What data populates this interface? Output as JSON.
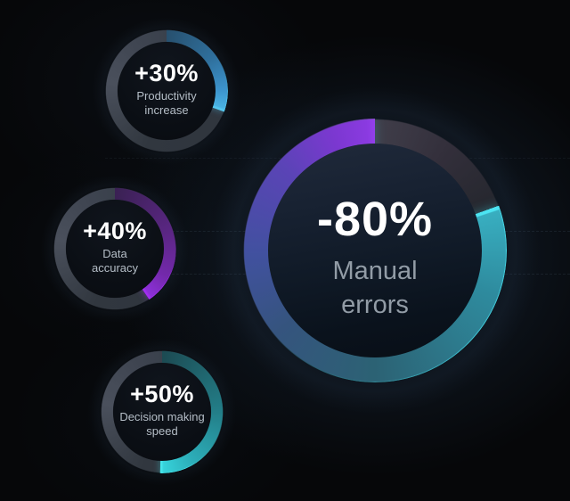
{
  "page": {
    "description": "Dark infographic with four circular progress gauges",
    "background_color": "#060709"
  },
  "chart_data": {
    "type": "donut-gauges",
    "title": "",
    "legend": "none",
    "grid": {
      "style": "faint dashed horizontal lines",
      "color": "rgba(150,180,205,0.10)"
    },
    "gauges": [
      {
        "value_label": "+30%",
        "label_line1": "Productivity",
        "label_line2": "increase",
        "value": 30,
        "percent_filled": 30,
        "direction": "clockwise",
        "start_angle_deg": 0,
        "size": "small",
        "arc_color_start": "#27506e",
        "arc_color_end": "#49b1e2",
        "edge_highlight_color": "#55c8f0",
        "track_color": "#3a414c"
      },
      {
        "value_label": "+40%",
        "label_line1": "Data",
        "label_line2": "accuracy",
        "value": 40,
        "percent_filled": 40,
        "direction": "clockwise",
        "start_angle_deg": 0,
        "size": "small",
        "arc_color_start": "#3a2153",
        "arc_color_end": "#8c30d8",
        "edge_highlight_color": "#a42df2",
        "track_color": "#3a414c"
      },
      {
        "value_label": "+50%",
        "label_line1": "Decision making",
        "label_line2": "speed",
        "value": 50,
        "percent_filled": 50,
        "direction": "clockwise",
        "start_angle_deg": 0,
        "size": "small",
        "arc_color_start": "#1c4a52",
        "arc_color_end": "#36d2da",
        "edge_highlight_color": "#46e6ec",
        "track_color": "#3a414c"
      },
      {
        "value_label": "-80%",
        "label_line1": "Manual",
        "label_line2": "errors",
        "value": -80,
        "percent_filled": 80,
        "direction": "counterclockwise",
        "start_angle_deg": 0,
        "size": "large",
        "arc_gradient": [
          "#9340ea",
          "#5a44b6",
          "#41519f",
          "#2c6274",
          "#2e8b9e",
          "#38aec0"
        ],
        "edge_highlight_color": "#46dcec",
        "track_color": "#333038"
      }
    ],
    "text_colors": {
      "value": "#ffffff",
      "small_caption": "#b5bec7",
      "large_caption": "#929ca6"
    }
  }
}
